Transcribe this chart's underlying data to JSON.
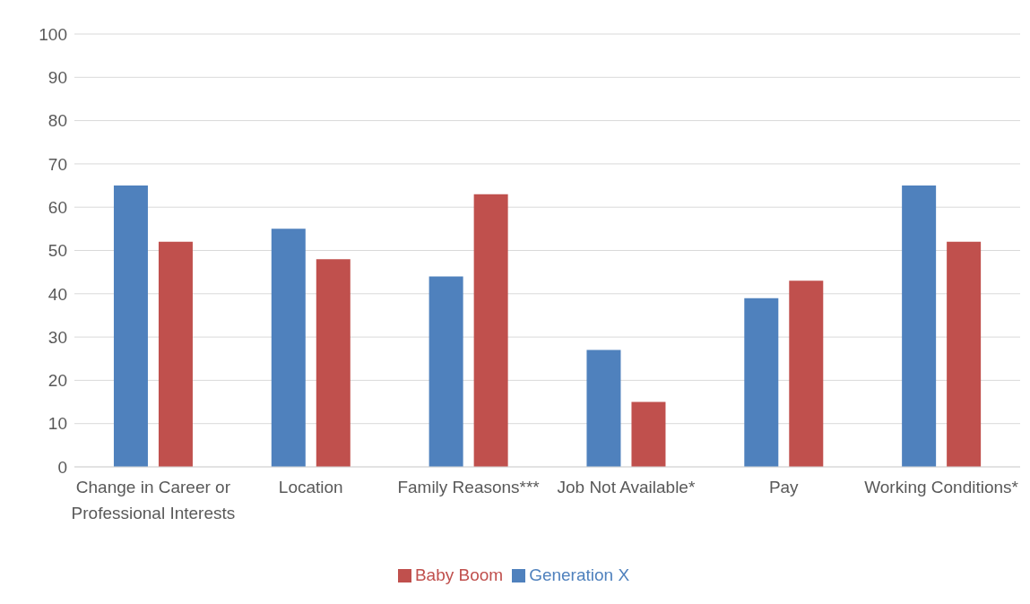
{
  "chart_data": {
    "type": "bar",
    "categories": [
      "Change in Career or Professional Interests",
      "Location",
      "Family Reasons***",
      "Job Not Available*",
      "Pay",
      "Working Conditions*"
    ],
    "series": [
      {
        "name": "Generation X",
        "color": "#4f81bd",
        "values": [
          65,
          55,
          44,
          27,
          39,
          65
        ]
      },
      {
        "name": "Baby Boom",
        "color": "#c0504d",
        "values": [
          52,
          48,
          63,
          15,
          43,
          52
        ]
      }
    ],
    "ylim": [
      0,
      100
    ],
    "yticks": [
      0,
      10,
      20,
      30,
      40,
      50,
      60,
      70,
      80,
      90,
      100
    ],
    "grid": "y",
    "legend": "bottom"
  }
}
